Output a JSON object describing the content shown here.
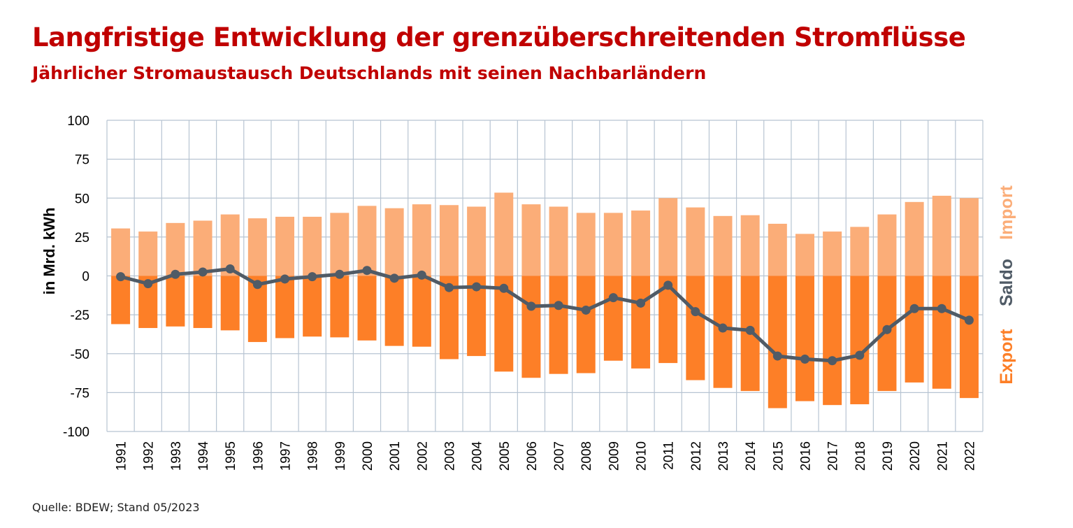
{
  "header": {
    "title": "Langfristige Entwicklung der grenzüberschreitenden Stromflüsse",
    "subtitle": "Jährlicher Stromaustausch Deutschlands mit seinen Nachbarländern"
  },
  "footer": {
    "source": "Quelle: BDEW; Stand 05/2023"
  },
  "colors": {
    "title": "#c00000",
    "import": "#fbad78",
    "export": "#fd7f27",
    "saldo": "#505b66",
    "grid": "#b7c4d2"
  },
  "chart_data": {
    "type": "bar",
    "ylabel": "in Mrd. kWh",
    "ylim": [
      -100,
      100
    ],
    "yticks": [
      100,
      75,
      50,
      25,
      0,
      -25,
      -50,
      -75,
      -100
    ],
    "grid": true,
    "legend_position": "right",
    "categories": [
      "1991",
      "1992",
      "1993",
      "1994",
      "1995",
      "1996",
      "1997",
      "1998",
      "1999",
      "2000",
      "2001",
      "2002",
      "2003",
      "2004",
      "2005",
      "2006",
      "2007",
      "2008",
      "2009",
      "2010",
      "2011",
      "2012",
      "2013",
      "2014",
      "2015",
      "2016",
      "2017",
      "2018",
      "2019",
      "2020",
      "2021",
      "2022"
    ],
    "series": [
      {
        "name": "Import",
        "type": "bar",
        "values": [
          30.5,
          28.5,
          34,
          35.5,
          39.5,
          37,
          38,
          38,
          40.5,
          45,
          43.5,
          46,
          45.5,
          44.5,
          53.5,
          46,
          44.5,
          40.5,
          40.5,
          42,
          50,
          44,
          38.5,
          39,
          33.5,
          27,
          28.5,
          31.5,
          39.5,
          47.5,
          51.5,
          50
        ]
      },
      {
        "name": "Export",
        "type": "bar",
        "values": [
          -31,
          -33.5,
          -32.5,
          -33.5,
          -35,
          -42.5,
          -40,
          -39,
          -39.5,
          -41.5,
          -45,
          -45.5,
          -53.5,
          -51.5,
          -61.5,
          -65.5,
          -63,
          -62.5,
          -54.5,
          -59.5,
          -56,
          -67,
          -72,
          -74,
          -85,
          -80.5,
          -83,
          -82.5,
          -74,
          -68.5,
          -72.5,
          -78.5
        ]
      },
      {
        "name": "Saldo",
        "type": "line",
        "values": [
          -0.5,
          -5,
          1,
          2.5,
          4.5,
          -5.5,
          -2,
          -0.5,
          1,
          3.5,
          -1.5,
          0.5,
          -7.5,
          -7,
          -8,
          -19.5,
          -19,
          -22,
          -14,
          -17.5,
          -6,
          -23,
          -33.5,
          -35,
          -51.5,
          -53.5,
          -54.5,
          -51,
          -34.5,
          -21,
          -21,
          -28.5
        ]
      }
    ]
  }
}
